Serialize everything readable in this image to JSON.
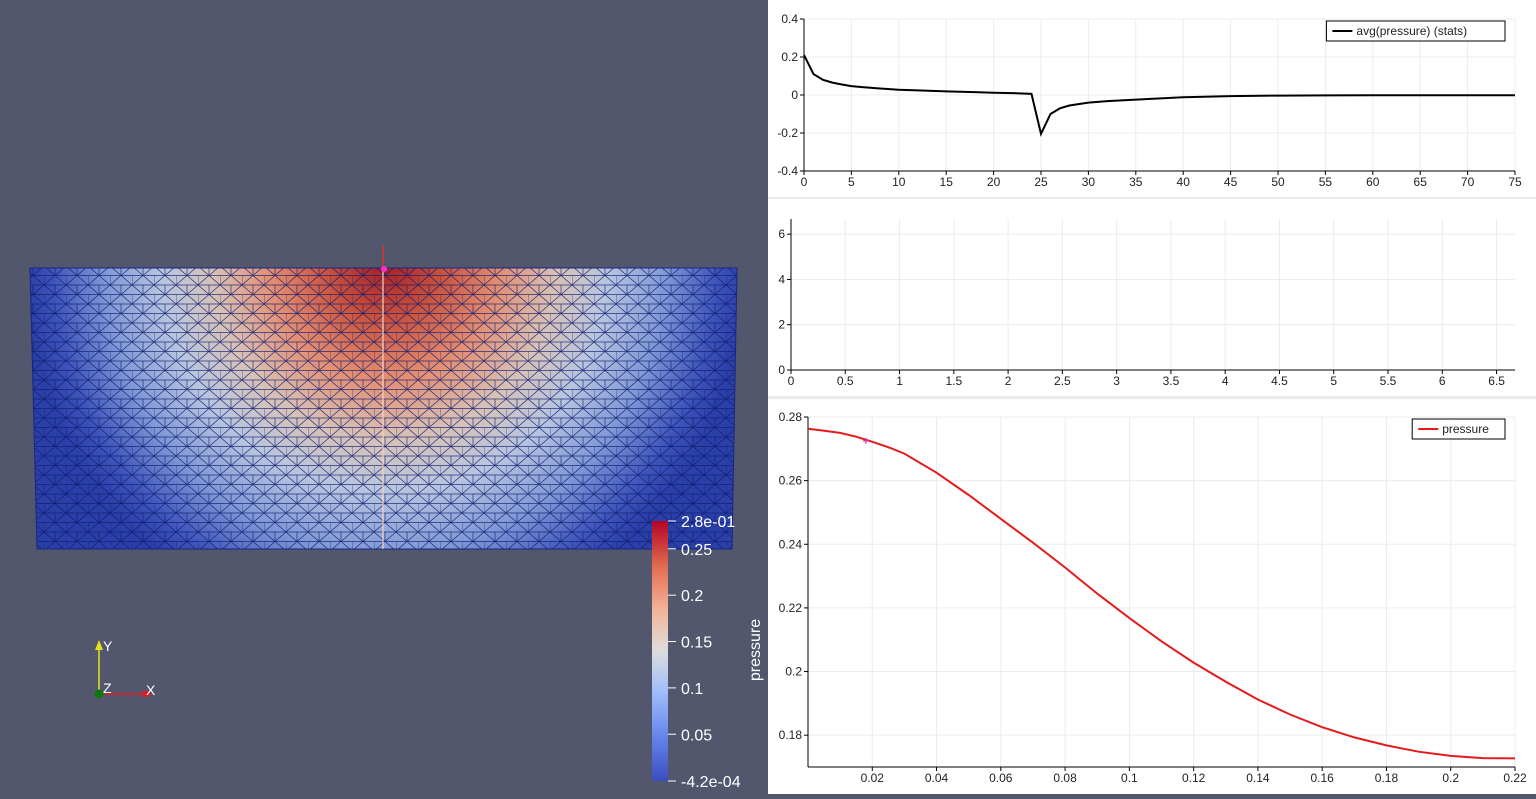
{
  "render_view": {
    "colorbar": {
      "title": "pressure",
      "labels": [
        "2.8e-01",
        "0.25",
        "0.2",
        "0.15",
        "0.1",
        "0.05",
        "-4.2e-04"
      ],
      "values": [
        0.28,
        0.25,
        0.2,
        0.15,
        0.1,
        0.05,
        -0.00042
      ],
      "range": [
        -0.00042,
        0.28
      ],
      "colors": [
        "#3b4cc0",
        "#7396f5",
        "#b0cbfc",
        "#dddcdc",
        "#f6b89c",
        "#e7745b",
        "#b40426"
      ]
    },
    "axes": {
      "x": "X",
      "y": "Y",
      "z": "Z"
    },
    "axis_colors": {
      "x": "#e01b1b",
      "y": "#e8e21c",
      "z": "#0b7a0b"
    }
  },
  "chart_data": [
    {
      "type": "line",
      "xlim": [
        0,
        75
      ],
      "ylim": [
        -0.4,
        0.4
      ],
      "x_ticks": [
        "0",
        "5",
        "10",
        "15",
        "20",
        "25",
        "30",
        "35",
        "40",
        "45",
        "50",
        "55",
        "60",
        "65",
        "70",
        "75"
      ],
      "x_tick_values": [
        0,
        5,
        10,
        15,
        20,
        25,
        30,
        35,
        40,
        45,
        50,
        55,
        60,
        65,
        70,
        75
      ],
      "y_ticks": [
        "-0.4",
        "-0.2",
        "0",
        "0.2",
        "0.4"
      ],
      "y_tick_values": [
        -0.4,
        -0.2,
        0,
        0.2,
        0.4
      ],
      "legend": "top-right",
      "grid": true,
      "series": [
        {
          "name": "avg(pressure) (stats)",
          "color": "#000000",
          "x": [
            0,
            1,
            2,
            3,
            4,
            5,
            6,
            8,
            10,
            12,
            15,
            18,
            20,
            22,
            24,
            25,
            26,
            27,
            28,
            30,
            32,
            35,
            40,
            45,
            50,
            55,
            60,
            65,
            70,
            75
          ],
          "y": [
            0.21,
            0.11,
            0.08,
            0.065,
            0.055,
            0.047,
            0.042,
            0.034,
            0.028,
            0.024,
            0.019,
            0.015,
            0.012,
            0.01,
            0.006,
            -0.205,
            -0.1,
            -0.07,
            -0.055,
            -0.04,
            -0.032,
            -0.024,
            -0.012,
            -0.006,
            -0.003,
            -0.002,
            -0.0015,
            -0.0012,
            -0.001,
            -0.001
          ]
        }
      ]
    },
    {
      "type": "line",
      "xlim": [
        0,
        6.67
      ],
      "ylim": [
        0,
        6.67
      ],
      "x_ticks": [
        "0",
        "0.5",
        "1",
        "1.5",
        "2",
        "2.5",
        "3",
        "3.5",
        "4",
        "4.5",
        "5",
        "5.5",
        "6",
        "6.5"
      ],
      "x_tick_values": [
        0,
        0.5,
        1,
        1.5,
        2,
        2.5,
        3,
        3.5,
        4,
        4.5,
        5,
        5.5,
        6,
        6.5
      ],
      "y_ticks": [
        "0",
        "2",
        "4",
        "6"
      ],
      "y_tick_values": [
        0,
        2,
        4,
        6
      ],
      "grid": true,
      "series": []
    },
    {
      "type": "line",
      "xlim": [
        0,
        0.22
      ],
      "ylim": [
        0.17,
        0.28
      ],
      "x_ticks": [
        "0.02",
        "0.04",
        "0.06",
        "0.08",
        "0.1",
        "0.12",
        "0.14",
        "0.16",
        "0.18",
        "0.2",
        "0.22"
      ],
      "x_tick_values": [
        0.02,
        0.04,
        0.06,
        0.08,
        0.1,
        0.12,
        0.14,
        0.16,
        0.18,
        0.2,
        0.22
      ],
      "y_ticks": [
        "0.18",
        "0.2",
        "0.22",
        "0.24",
        "0.26",
        "0.28"
      ],
      "y_tick_values": [
        0.18,
        0.2,
        0.22,
        0.24,
        0.26,
        0.28
      ],
      "legend": "top-right",
      "grid": true,
      "series": [
        {
          "name": "pressure",
          "color": "#e41a1c",
          "x": [
            0,
            0.005,
            0.01,
            0.015,
            0.02,
            0.025,
            0.03,
            0.04,
            0.05,
            0.06,
            0.07,
            0.08,
            0.09,
            0.1,
            0.11,
            0.12,
            0.13,
            0.14,
            0.15,
            0.16,
            0.17,
            0.18,
            0.19,
            0.2,
            0.21,
            0.22
          ],
          "y": [
            0.2763,
            0.2757,
            0.275,
            0.2738,
            0.2722,
            0.2705,
            0.2685,
            0.2625,
            0.2555,
            0.248,
            0.2405,
            0.2327,
            0.2245,
            0.2168,
            0.2095,
            0.2028,
            0.1968,
            0.1912,
            0.1865,
            0.1825,
            0.1793,
            0.1768,
            0.1748,
            0.1735,
            0.1728,
            0.1727
          ]
        }
      ],
      "marker": {
        "x": 0.018,
        "y": 0.2725,
        "color": "#d3399e"
      }
    }
  ]
}
